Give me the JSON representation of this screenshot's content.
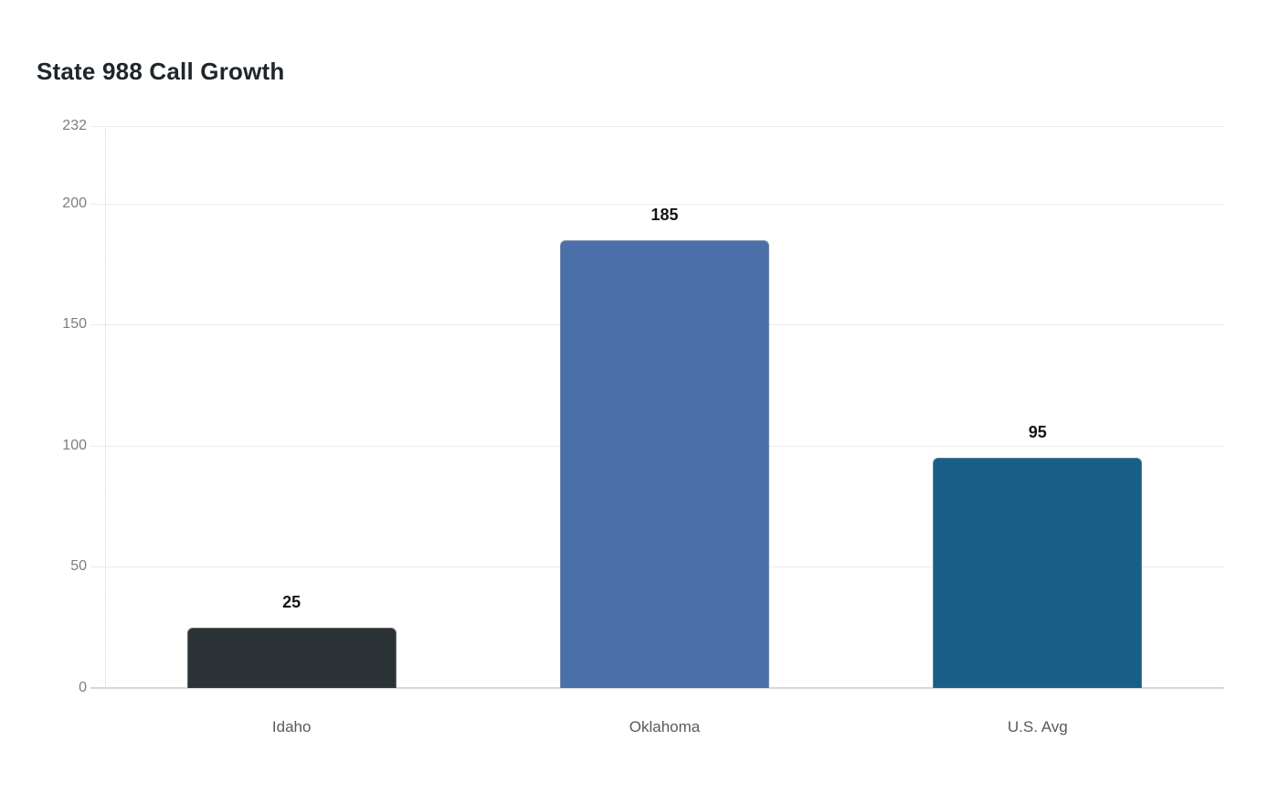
{
  "chart_data": {
    "type": "bar",
    "title": "State 988 Call Growth",
    "categories": [
      "Idaho",
      "Oklahoma",
      "U.S. Avg"
    ],
    "values": [
      25,
      185,
      95
    ],
    "bar_colors": [
      "#2c3336",
      "#4b6fa8",
      "#175f87"
    ],
    "value_labels_shown": true,
    "xlabel": "",
    "ylabel": "",
    "yticks": [
      0,
      50,
      100,
      150,
      200,
      232
    ],
    "ylim": [
      0,
      232
    ],
    "grid": true,
    "legend": false
  },
  "colors": {
    "background": "#ffffff",
    "title_text": "#20262a",
    "gridline": "#ececec",
    "baseline": "#d6d8da",
    "axis_dotted_line": "#d4d4d4",
    "tick_label_text": "#7a7f84",
    "category_label_text": "#565a5f",
    "value_label_text": "#131619"
  }
}
